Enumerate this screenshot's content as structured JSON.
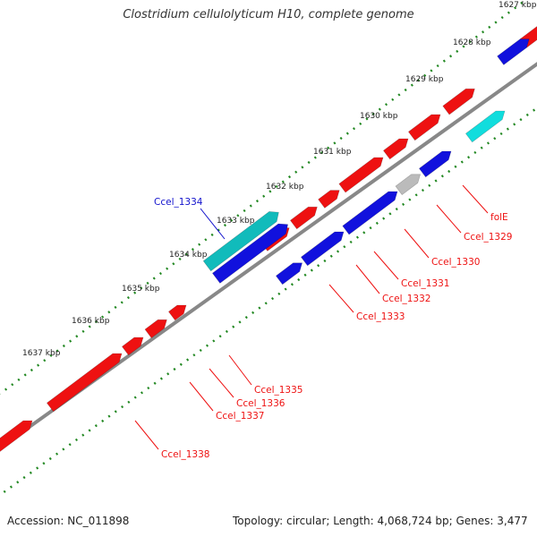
{
  "title": "Clostridium cellulolyticum H10, complete genome",
  "footer": {
    "accession": "Accession: NC_011898",
    "summary": "Topology: circular; Length: 4,068,724 bp; Genes: 3,477"
  },
  "colors": {
    "forward_gene": "#ee1111",
    "reverse_gene": "#1111dd",
    "rna_forward": "#11bbbb",
    "rna_reverse": "#11dddd",
    "other_gene": "#bbbbbb",
    "backbone": "#888888",
    "tick": "#228822",
    "forward_label": "#ee1111",
    "rna_label": "#1111cc"
  },
  "scale_ticks": [
    "1627 kbp",
    "1628 kbp",
    "1629 kbp",
    "1630 kbp",
    "1631 kbp",
    "1632 kbp",
    "1633 kbp",
    "1634 kbp",
    "1635 kbp",
    "1636 kbp",
    "1637 kbp"
  ],
  "gene_labels": [
    {
      "name": "folE",
      "color": "red"
    },
    {
      "name": "Ccel_1329",
      "color": "red"
    },
    {
      "name": "Ccel_1330",
      "color": "red"
    },
    {
      "name": "Ccel_1331",
      "color": "red"
    },
    {
      "name": "Ccel_1332",
      "color": "red"
    },
    {
      "name": "Ccel_1333",
      "color": "red"
    },
    {
      "name": "Ccel_1334",
      "color": "blue"
    },
    {
      "name": "Ccel_1335",
      "color": "red"
    },
    {
      "name": "Ccel_1336",
      "color": "red"
    },
    {
      "name": "Ccel_1337",
      "color": "red"
    },
    {
      "name": "Ccel_1338",
      "color": "red"
    }
  ]
}
